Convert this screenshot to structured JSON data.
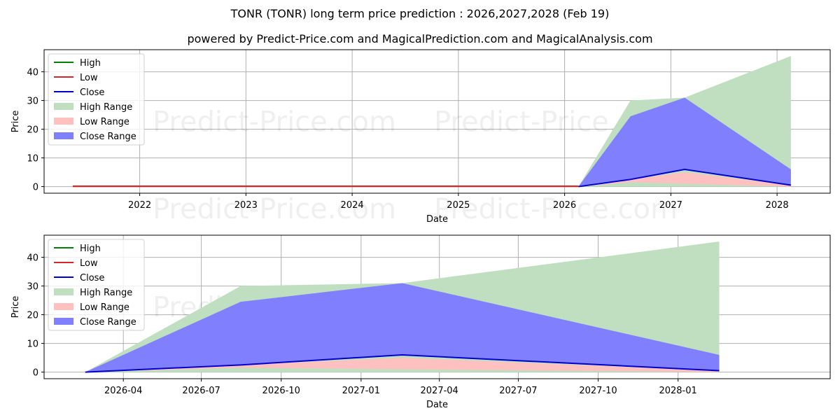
{
  "header": {
    "title": "TONR (TONR) long term price prediction : 2026,2027,2028 (Feb 19)",
    "subtitle": "powered by Predict-Price.com and MagicalPrediction.com and MagicalAnalysis.com"
  },
  "watermark": "Predict-Price.com",
  "colors": {
    "high": "#008000",
    "low": "#d62728",
    "close": "#0000ff",
    "high_range": "#c0dfc0",
    "low_range": "#ffc0c0",
    "close_range": "#8080ff",
    "grid": "#b0b0b0"
  },
  "legend": {
    "items": [
      {
        "label": "High",
        "kind": "line",
        "color": "#008000"
      },
      {
        "label": "Low",
        "kind": "line",
        "color": "#d62728"
      },
      {
        "label": "Close",
        "kind": "line",
        "color": "#0000cc"
      },
      {
        "label": "High Range",
        "kind": "patch",
        "color": "#c0dfc0"
      },
      {
        "label": "Low Range",
        "kind": "patch",
        "color": "#ffc0c0"
      },
      {
        "label": "Close Range",
        "kind": "patch",
        "color": "#8080ff"
      }
    ]
  },
  "chart_data": [
    {
      "type": "area",
      "title": "TONR (TONR) long term price prediction : 2026,2027,2028 (Feb 19)",
      "subtitle": "powered by Predict-Price.com and MagicalPrediction.com and MagicalAnalysis.com",
      "xlabel": "Date",
      "ylabel": "Price",
      "xlim": [
        2021.1,
        2028.5
      ],
      "ylim": [
        -2.3,
        47.7
      ],
      "xticks": [
        "2022",
        "2023",
        "2024",
        "2025",
        "2026",
        "2027",
        "2028"
      ],
      "xtick_values": [
        2022,
        2023,
        2024,
        2025,
        2026,
        2027,
        2028
      ],
      "yticks": [
        0,
        10,
        20,
        30,
        40
      ],
      "grid": true,
      "legend_position": "upper left",
      "history": {
        "x": [
          2021.37,
          2026.13
        ],
        "low": [
          0.1,
          0.1
        ],
        "high": [
          0.1,
          0.1
        ],
        "close": [
          0.1,
          0.1
        ]
      },
      "forecast": {
        "x": [
          2026.13,
          2026.62,
          2027.13,
          2028.13
        ],
        "dates": [
          "2026-02-19",
          "2026-08",
          "2027-02",
          "2028-02"
        ],
        "high_range_upper": [
          0,
          30,
          31,
          45.5
        ],
        "high_range_lower": [
          0,
          2.5,
          6,
          0.5
        ],
        "close_range_upper": [
          0,
          24.5,
          31,
          6
        ],
        "close_range_lower": [
          0,
          2.5,
          1.5,
          0
        ],
        "low_range_upper": [
          0,
          2.5,
          5,
          0.5
        ],
        "low_range_lower": [
          0,
          1.5,
          1.0,
          0
        ],
        "close": [
          0,
          2.5,
          6,
          0.5
        ]
      }
    },
    {
      "type": "area",
      "xlabel": "Date",
      "ylabel": "Price",
      "xlim": [
        2026.0,
        2028.48
      ],
      "ylim": [
        -2.3,
        47.7
      ],
      "xticks": [
        "2026-04",
        "2026-07",
        "2026-10",
        "2027-01",
        "2027-04",
        "2027-07",
        "2027-10",
        "2028-01"
      ],
      "xtick_values": [
        2026.25,
        2026.496,
        2026.748,
        2027.0,
        2027.247,
        2027.496,
        2027.748,
        2028.0
      ],
      "yticks": [
        0,
        10,
        20,
        30,
        40
      ],
      "grid": true,
      "legend_position": "upper left",
      "forecast": {
        "x": [
          2026.13,
          2026.62,
          2027.13,
          2028.13
        ],
        "dates": [
          "2026-02-19",
          "2026-08",
          "2027-02",
          "2028-02"
        ],
        "high_range_upper": [
          0,
          30,
          31,
          45.5
        ],
        "close_range_upper": [
          0,
          24.5,
          31,
          6
        ],
        "low_range_upper": [
          0,
          2.5,
          5,
          0.5
        ],
        "low_range_lower": [
          0,
          1.5,
          1.0,
          0
        ],
        "close": [
          0,
          2.5,
          6,
          0.5
        ]
      }
    }
  ]
}
